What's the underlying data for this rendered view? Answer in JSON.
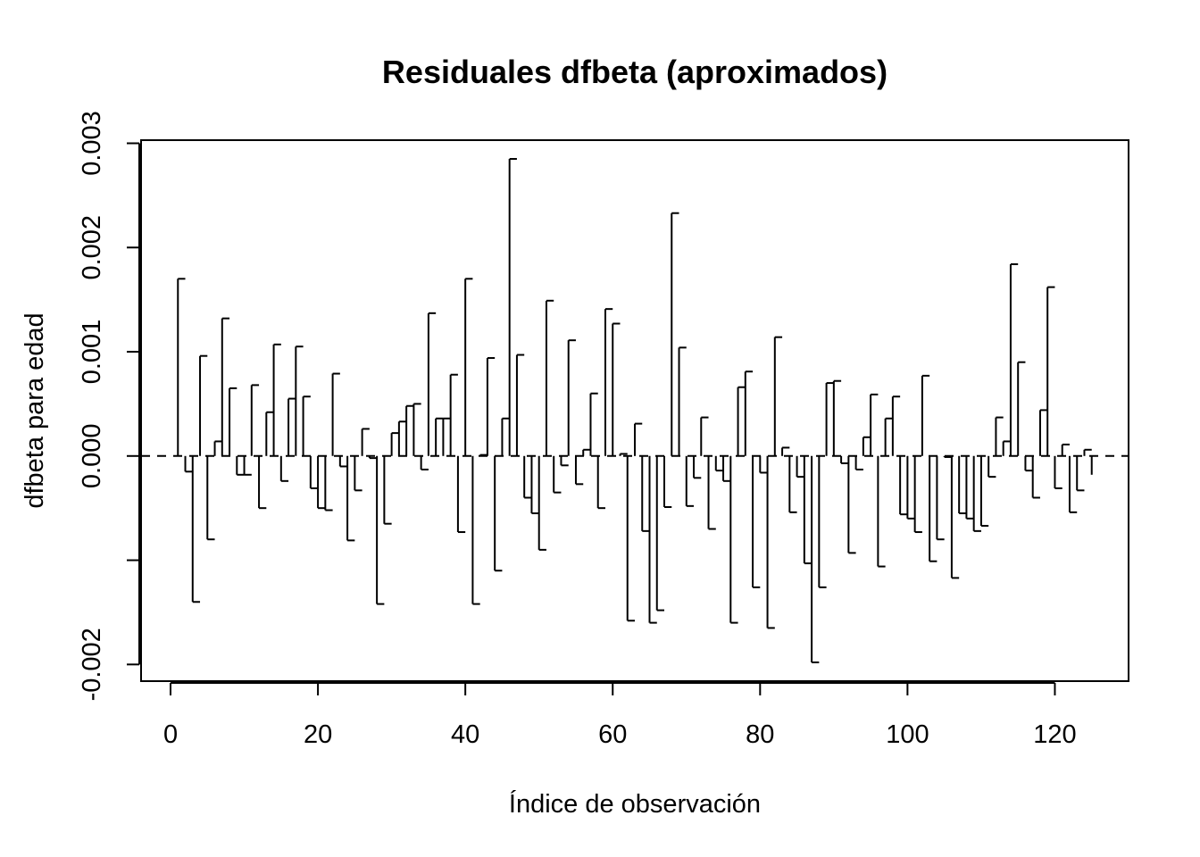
{
  "chart_data": {
    "type": "bar",
    "title": "Residuales dfbeta (aproximados)",
    "xlabel": "Índice de observación",
    "ylabel": "dfbeta para edad",
    "xlim": [
      -4,
      130
    ],
    "ylim": [
      -0.00216,
      0.00303
    ],
    "x_ticks": [
      0,
      20,
      40,
      60,
      80,
      100,
      120
    ],
    "x_tick_labels": [
      "0",
      "20",
      "40",
      "60",
      "80",
      "100",
      "120"
    ],
    "y_ticks": [
      -0.002,
      -0.001,
      0.0,
      0.001,
      0.002,
      0.003
    ],
    "y_tick_labels": [
      "-0.002",
      "",
      "0.000",
      "0.001",
      "0.002",
      "0.003"
    ],
    "reference_line": 0,
    "reference_line_style": "dashed",
    "grid": false,
    "x": [
      1,
      2,
      3,
      4,
      5,
      6,
      7,
      8,
      9,
      10,
      11,
      12,
      13,
      14,
      15,
      16,
      17,
      18,
      19,
      20,
      21,
      22,
      23,
      24,
      25,
      26,
      27,
      28,
      29,
      30,
      31,
      32,
      33,
      34,
      35,
      36,
      37,
      38,
      39,
      40,
      41,
      42,
      43,
      44,
      45,
      46,
      47,
      48,
      49,
      50,
      51,
      52,
      53,
      54,
      55,
      56,
      57,
      58,
      59,
      60,
      61,
      62,
      63,
      64,
      65,
      66,
      67,
      68,
      69,
      70,
      71,
      72,
      73,
      74,
      75,
      76,
      77,
      78,
      79,
      80,
      81,
      82,
      83,
      84,
      85,
      86,
      87,
      88,
      89,
      90,
      91,
      92,
      93,
      94,
      95,
      96,
      97,
      98,
      99,
      100,
      101,
      102,
      103,
      104,
      105,
      106,
      107,
      108,
      109,
      110,
      111,
      112,
      113,
      114,
      115,
      116,
      117,
      118,
      119,
      120,
      121,
      122,
      123,
      124,
      125
    ],
    "values": [
      0.0017,
      -0.00015,
      -0.0014,
      0.00096,
      -0.0008,
      0.00014,
      0.00132,
      0.00065,
      -0.00018,
      -0.00018,
      0.00068,
      -0.0005,
      0.00042,
      0.00107,
      -0.00024,
      0.00055,
      0.00105,
      0.00057,
      -0.00031,
      -0.0005,
      -0.00052,
      0.00079,
      -0.0001,
      -0.00081,
      -0.00033,
      0.00026,
      -2e-05,
      -0.00142,
      -0.00065,
      0.00022,
      0.00033,
      0.00048,
      0.0005,
      -0.00013,
      0.00137,
      0.00036,
      0.00036,
      0.00078,
      -0.00073,
      0.0017,
      -0.00142,
      1e-05,
      0.00094,
      -0.0011,
      0.00036,
      0.00285,
      0.00097,
      -0.0004,
      -0.00055,
      -0.0009,
      0.00149,
      -0.00035,
      -9e-05,
      0.00111,
      -0.00027,
      6e-05,
      0.0006,
      -0.0005,
      0.00141,
      0.00127,
      2e-05,
      -0.00158,
      0.00031,
      -0.00072,
      -0.0016,
      -0.00148,
      -0.00049,
      0.00233,
      0.00104,
      -0.00048,
      -0.00021,
      0.00037,
      -0.0007,
      -0.00014,
      -0.00024,
      -0.0016,
      0.00066,
      0.00081,
      -0.00126,
      -0.00016,
      -0.00165,
      0.00114,
      8e-05,
      -0.00054,
      -0.0002,
      -0.00103,
      -0.00198,
      -0.00126,
      0.0007,
      0.00072,
      -7e-05,
      -0.00093,
      -0.00013,
      0.00018,
      0.00059,
      -0.00106,
      0.00036,
      0.00057,
      -0.00056,
      -0.0006,
      -0.00073,
      0.00077,
      -0.00101,
      -0.0008,
      -1e-05,
      -0.00117,
      -0.00055,
      -0.0006,
      -0.00072,
      -0.00067,
      -0.0002,
      0.00037,
      0.00014,
      0.00184,
      0.0009,
      -0.00014,
      -0.0004,
      0.00044,
      0.00162,
      -0.00031,
      0.00011,
      -0.00054,
      -0.00033,
      6e-05,
      -0.00018
    ]
  }
}
